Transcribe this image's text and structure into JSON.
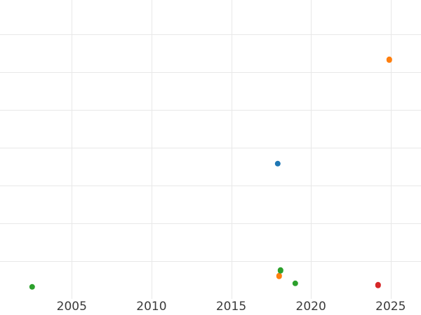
{
  "chart_data": {
    "type": "scatter",
    "title": "",
    "xlabel": "",
    "ylabel": "",
    "x_ticks": [
      2005,
      2010,
      2015,
      2020,
      2025
    ],
    "x_tick_labels": [
      "2005",
      "2010",
      "2015",
      "2020",
      "2025"
    ],
    "xlim": [
      2000.5,
      2026.9
    ],
    "ylim": [
      0,
      7.91
    ],
    "y_gridline_values": [
      1,
      2,
      3,
      4,
      5,
      6,
      7
    ],
    "y_tick_labels": [],
    "grid": true,
    "legend_position": "none",
    "points": [
      {
        "x": 2002.5,
        "y": 0.31,
        "series": "green"
      },
      {
        "x": 2017.9,
        "y": 3.58,
        "series": "blue"
      },
      {
        "x": 2018.0,
        "y": 0.6,
        "series": "orange"
      },
      {
        "x": 2018.1,
        "y": 0.75,
        "series": "green"
      },
      {
        "x": 2019.0,
        "y": 0.41,
        "series": "green"
      },
      {
        "x": 2024.2,
        "y": 0.36,
        "series": "red"
      },
      {
        "x": 2024.9,
        "y": 6.33,
        "series": "orange"
      }
    ],
    "colors": {
      "blue": "#1f77b4",
      "orange": "#ff7f0e",
      "green": "#2ca02c",
      "red": "#d62728"
    },
    "style": {
      "grid_color": "#e8e8e8",
      "tick_label_color": "#3a3a3a",
      "background": "#ffffff",
      "marker_diameter_px": 8.4
    }
  }
}
